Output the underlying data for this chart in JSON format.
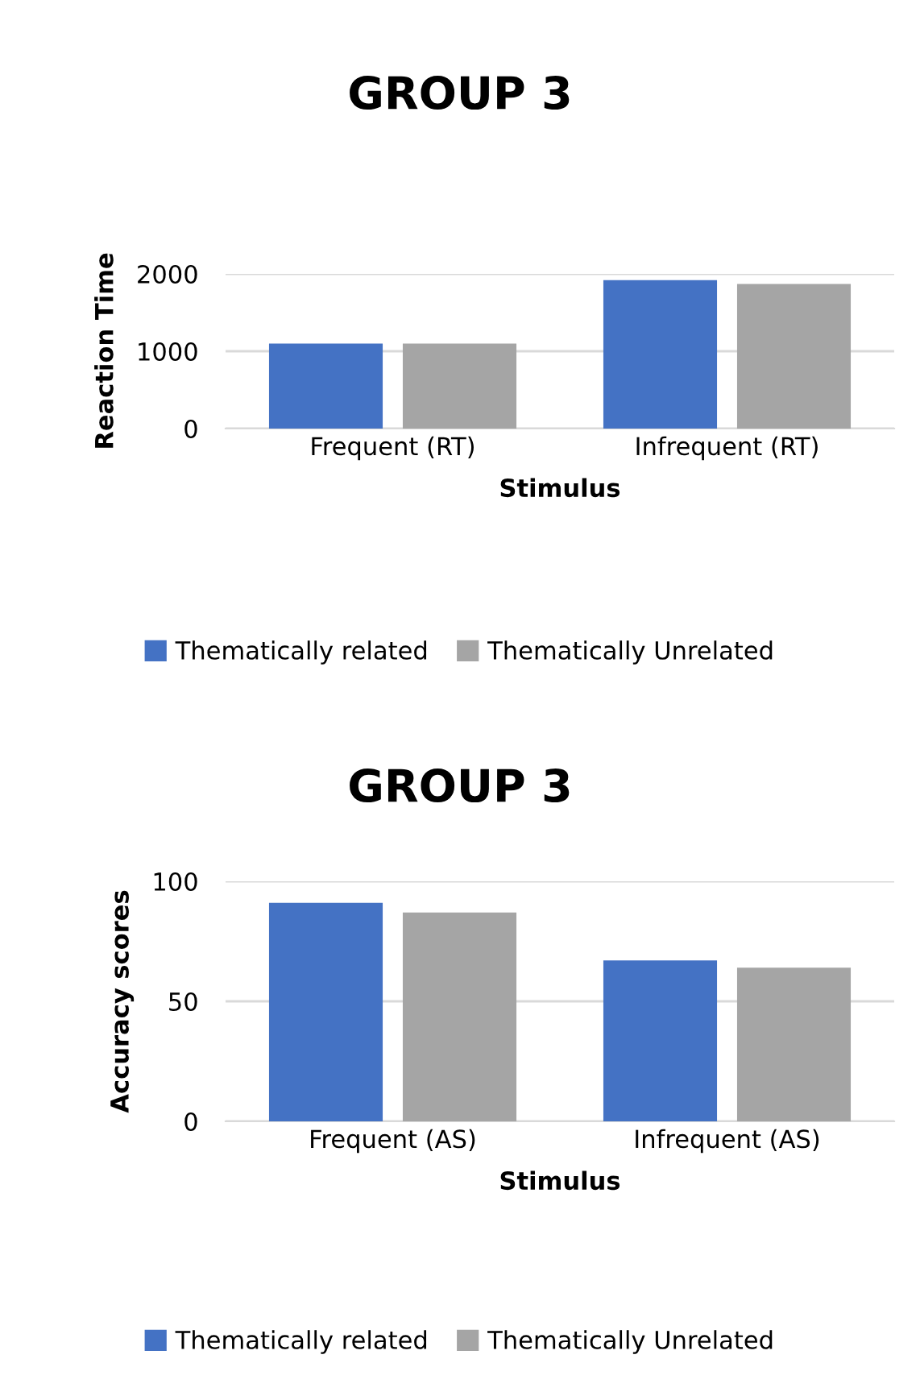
{
  "chart_data": [
    {
      "type": "bar",
      "title": "GROUP 3",
      "xlabel": "Stimulus",
      "ylabel": "Reaction Time",
      "categories": [
        "Frequent (RT)",
        "Infrequent (RT)"
      ],
      "series": [
        {
          "name": "Thematically related",
          "color": "#4472c4",
          "values": [
            1100,
            1920
          ]
        },
        {
          "name": "Thematically Unrelated",
          "color": "#a5a5a5",
          "values": [
            1100,
            1870
          ]
        }
      ],
      "ylim": [
        0,
        2000
      ],
      "yticks": [
        0,
        1000,
        2000
      ],
      "grid": "y",
      "legend": "bottom"
    },
    {
      "type": "bar",
      "title": "GROUP 3",
      "xlabel": "Stimulus",
      "ylabel": "Accuracy scores",
      "categories": [
        "Frequent (AS)",
        "Infrequent (AS)"
      ],
      "series": [
        {
          "name": "Thematically related",
          "color": "#4472c4",
          "values": [
            91,
            67
          ]
        },
        {
          "name": "Thematically Unrelated",
          "color": "#a5a5a5",
          "values": [
            87,
            64
          ]
        }
      ],
      "ylim": [
        0,
        100
      ],
      "yticks": [
        0,
        50,
        100
      ],
      "grid": "y",
      "legend": "bottom"
    }
  ]
}
